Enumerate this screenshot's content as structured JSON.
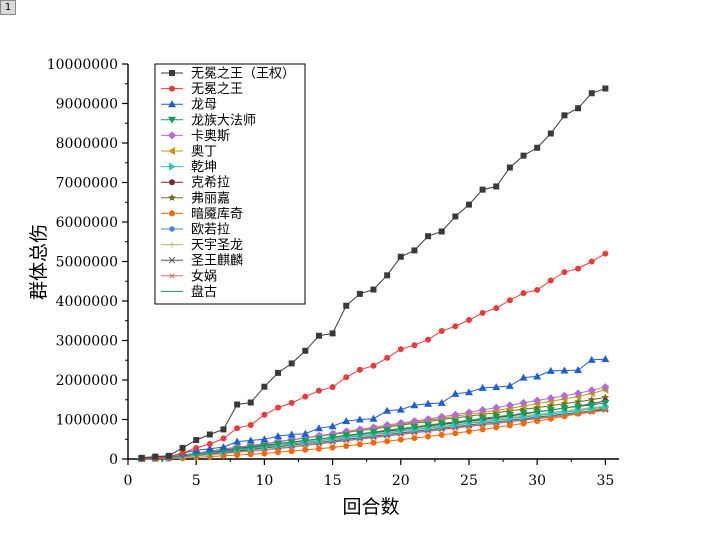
{
  "page_tag": "1",
  "chart_data": {
    "type": "line",
    "title": "",
    "xlabel": "回合数",
    "ylabel": "群体总伤",
    "xlim": [
      0,
      36
    ],
    "ylim": [
      0,
      10000000
    ],
    "xticks": [
      0,
      5,
      10,
      15,
      20,
      25,
      30,
      35
    ],
    "yticks": [
      0,
      1000000,
      2000000,
      3000000,
      4000000,
      5000000,
      6000000,
      7000000,
      8000000,
      9000000,
      10000000
    ],
    "legend_position": "top-left",
    "x": [
      1,
      2,
      3,
      4,
      5,
      6,
      7,
      8,
      9,
      10,
      11,
      12,
      13,
      14,
      15,
      16,
      17,
      18,
      19,
      20,
      21,
      22,
      23,
      24,
      25,
      26,
      27,
      28,
      29,
      30,
      31,
      32,
      33,
      34,
      35
    ],
    "series": [
      {
        "name": "无冕之王（王权）",
        "color": "#3a3a3a",
        "marker": "square",
        "values": [
          30000,
          60000,
          80000,
          280000,
          480000,
          620000,
          750000,
          1380000,
          1430000,
          1830000,
          2180000,
          2420000,
          2740000,
          3120000,
          3180000,
          3880000,
          4180000,
          4290000,
          4650000,
          5120000,
          5280000,
          5640000,
          5760000,
          6140000,
          6440000,
          6820000,
          6900000,
          7380000,
          7680000,
          7880000,
          8240000,
          8700000,
          8880000,
          9260000,
          9380000
        ]
      },
      {
        "name": "无冕之王",
        "color": "#e83b3b",
        "marker": "circle",
        "values": [
          10000,
          30000,
          50000,
          150000,
          280000,
          380000,
          520000,
          780000,
          860000,
          1120000,
          1300000,
          1420000,
          1580000,
          1730000,
          1820000,
          2070000,
          2260000,
          2360000,
          2560000,
          2780000,
          2880000,
          3020000,
          3240000,
          3360000,
          3520000,
          3700000,
          3820000,
          4020000,
          4200000,
          4280000,
          4520000,
          4730000,
          4820000,
          5000000,
          5200000
        ]
      },
      {
        "name": "龙母",
        "color": "#1f5fd0",
        "marker": "triangle-up",
        "values": [
          20000,
          40000,
          60000,
          150000,
          220000,
          260000,
          300000,
          440000,
          470000,
          500000,
          580000,
          620000,
          640000,
          780000,
          830000,
          960000,
          1000000,
          1020000,
          1220000,
          1250000,
          1360000,
          1400000,
          1420000,
          1650000,
          1690000,
          1800000,
          1820000,
          1850000,
          2060000,
          2090000,
          2230000,
          2240000,
          2250000,
          2510000,
          2530000
        ]
      },
      {
        "name": "龙族大法师",
        "color": "#12a05a",
        "marker": "triangle-down",
        "values": [
          10000,
          20000,
          40000,
          80000,
          120000,
          160000,
          200000,
          250000,
          290000,
          330000,
          380000,
          420000,
          460000,
          510000,
          550000,
          600000,
          640000,
          680000,
          730000,
          770000,
          810000,
          860000,
          900000,
          940000,
          980000,
          1030000,
          1070000,
          1110000,
          1160000,
          1200000,
          1240000,
          1290000,
          1330000,
          1370000,
          1420000
        ]
      },
      {
        "name": "卡奥斯",
        "color": "#b26cd8",
        "marker": "diamond",
        "values": [
          10000,
          20000,
          40000,
          90000,
          140000,
          190000,
          240000,
          290000,
          340000,
          390000,
          440000,
          490000,
          540000,
          590000,
          640000,
          700000,
          750000,
          800000,
          860000,
          910000,
          960000,
          1010000,
          1070000,
          1120000,
          1180000,
          1240000,
          1300000,
          1360000,
          1420000,
          1480000,
          1540000,
          1600000,
          1660000,
          1740000,
          1820000
        ]
      },
      {
        "name": "奥丁",
        "color": "#c39a10",
        "marker": "triangle-left",
        "values": [
          10000,
          20000,
          40000,
          90000,
          140000,
          190000,
          240000,
          290000,
          340000,
          380000,
          430000,
          480000,
          530000,
          580000,
          630000,
          680000,
          730000,
          780000,
          830000,
          880000,
          930000,
          980000,
          1030000,
          1080000,
          1130000,
          1180000,
          1230000,
          1280000,
          1340000,
          1400000,
          1460000,
          1520000,
          1580000,
          1660000,
          1750000
        ]
      },
      {
        "name": "乾坤",
        "color": "#2fc3c6",
        "marker": "triangle-right",
        "values": [
          10000,
          20000,
          30000,
          70000,
          110000,
          150000,
          190000,
          230000,
          270000,
          310000,
          350000,
          390000,
          430000,
          470000,
          510000,
          550000,
          590000,
          630000,
          670000,
          710000,
          750000,
          790000,
          830000,
          870000,
          910000,
          950000,
          990000,
          1030000,
          1070000,
          1110000,
          1150000,
          1190000,
          1230000,
          1270000,
          1320000
        ]
      },
      {
        "name": "克希拉",
        "color": "#7a2a3a",
        "marker": "circle",
        "values": [
          10000,
          20000,
          40000,
          90000,
          140000,
          180000,
          220000,
          270000,
          310000,
          350000,
          390000,
          430000,
          470000,
          510000,
          550000,
          590000,
          630000,
          670000,
          710000,
          750000,
          800000,
          840000,
          880000,
          920000,
          960000,
          1000000,
          1050000,
          1090000,
          1140000,
          1190000,
          1240000,
          1290000,
          1340000,
          1400000,
          1470000
        ]
      },
      {
        "name": "弗丽嘉",
        "color": "#6b6b1a",
        "marker": "star",
        "values": [
          10000,
          20000,
          40000,
          100000,
          150000,
          200000,
          250000,
          300000,
          340000,
          390000,
          440000,
          490000,
          530000,
          580000,
          620000,
          670000,
          720000,
          760000,
          810000,
          860000,
          900000,
          950000,
          1000000,
          1040000,
          1080000,
          1130000,
          1170000,
          1220000,
          1260000,
          1300000,
          1350000,
          1400000,
          1450000,
          1500000,
          1560000
        ]
      },
      {
        "name": "暗魇库奇",
        "color": "#f06a0a",
        "marker": "circle",
        "values": [
          0,
          0,
          10000,
          20000,
          40000,
          60000,
          80000,
          100000,
          120000,
          140000,
          170000,
          200000,
          230000,
          260000,
          290000,
          330000,
          370000,
          410000,
          450000,
          490000,
          530000,
          570000,
          610000,
          650000,
          700000,
          750000,
          800000,
          850000,
          900000,
          960000,
          1020000,
          1080000,
          1150000,
          1220000,
          1300000
        ]
      },
      {
        "name": "欧若拉",
        "color": "#4f86c8",
        "marker": "hexagon",
        "values": [
          10000,
          20000,
          30000,
          60000,
          100000,
          140000,
          180000,
          220000,
          260000,
          300000,
          340000,
          380000,
          420000,
          460000,
          500000,
          540000,
          580000,
          620000,
          660000,
          700000,
          740000,
          780000,
          820000,
          860000,
          900000,
          940000,
          980000,
          1020000,
          1060000,
          1100000,
          1140000,
          1180000,
          1220000,
          1270000,
          1320000
        ]
      },
      {
        "name": "天宇圣龙",
        "color": "#a8c46a",
        "marker": "plus",
        "values": [
          10000,
          20000,
          30000,
          80000,
          130000,
          170000,
          210000,
          260000,
          300000,
          340000,
          380000,
          420000,
          460000,
          500000,
          540000,
          580000,
          620000,
          660000,
          700000,
          740000,
          780000,
          820000,
          860000,
          900000,
          940000,
          980000,
          1020000,
          1060000,
          1100000,
          1140000,
          1180000,
          1220000,
          1260000,
          1300000,
          1350000
        ]
      },
      {
        "name": "圣王麒麟",
        "color": "#555555",
        "marker": "x",
        "values": [
          10000,
          20000,
          30000,
          60000,
          100000,
          130000,
          170000,
          200000,
          240000,
          280000,
          310000,
          350000,
          390000,
          420000,
          460000,
          500000,
          540000,
          580000,
          620000,
          660000,
          700000,
          740000,
          780000,
          820000,
          860000,
          900000,
          940000,
          980000,
          1020000,
          1060000,
          1100000,
          1140000,
          1180000,
          1220000,
          1270000
        ]
      },
      {
        "name": "女娲",
        "color": "#e86a6a",
        "marker": "asterisk",
        "values": [
          10000,
          20000,
          30000,
          50000,
          80000,
          110000,
          140000,
          170000,
          200000,
          230000,
          260000,
          300000,
          340000,
          380000,
          420000,
          460000,
          500000,
          540000,
          580000,
          620000,
          660000,
          700000,
          740000,
          780000,
          820000,
          860000,
          900000,
          940000,
          980000,
          1020000,
          1060000,
          1100000,
          1140000,
          1180000,
          1230000
        ]
      },
      {
        "name": "盘古",
        "color": "#2a8a7a",
        "marker": "none",
        "values": [
          10000,
          20000,
          30000,
          60000,
          90000,
          120000,
          150000,
          180000,
          210000,
          240000,
          270000,
          310000,
          350000,
          390000,
          430000,
          470000,
          510000,
          550000,
          590000,
          630000,
          670000,
          710000,
          750000,
          790000,
          830000,
          870000,
          910000,
          950000,
          990000,
          1030000,
          1070000,
          1110000,
          1150000,
          1200000,
          1250000
        ]
      }
    ]
  }
}
